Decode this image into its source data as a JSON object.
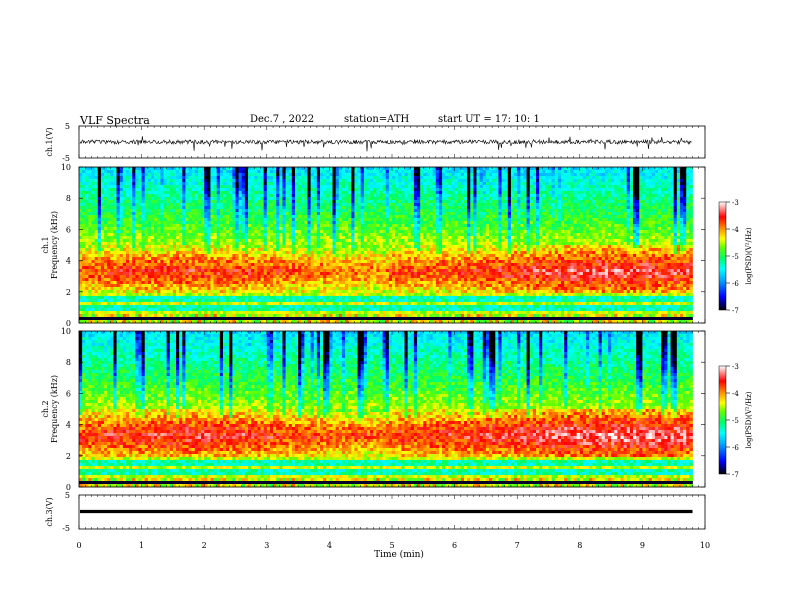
{
  "header": {
    "title": "VLF  Spectra",
    "date": "Dec.7  , 2022",
    "station": "station=ATH",
    "start_ut": "start  UT  =   17: 10: 1"
  },
  "chart_data": [
    {
      "type": "line",
      "name": "waveform-ch1",
      "ylabel": "ch.1(V)",
      "ylim": [
        -5,
        5
      ],
      "yticks": [
        "5",
        "-5"
      ],
      "xlim": [
        0,
        10
      ],
      "baseline": 0.2
    },
    {
      "type": "heatmap",
      "name": "spectrogram-ch1",
      "ylabel": "ch.1\nFrequency  (kHz)",
      "ylim": [
        0,
        10
      ],
      "yticks": [
        "0",
        "2",
        "4",
        "6",
        "8",
        "10"
      ],
      "xlim": [
        0,
        9.8
      ],
      "colorbar": {
        "label": "log(PSD)(V²/Hz)",
        "range": [
          -7,
          -3
        ],
        "ticks": [
          "-3",
          "-4",
          "-5",
          "-6",
          "-7"
        ]
      }
    },
    {
      "type": "heatmap",
      "name": "spectrogram-ch2",
      "ylabel": "ch.2\nFrequency  (kHz)",
      "ylim": [
        0,
        10
      ],
      "yticks": [
        "0",
        "2",
        "4",
        "6",
        "8",
        "10"
      ],
      "xlim": [
        0,
        9.8
      ],
      "colorbar": {
        "label": "log(PSD)(V²/Hz)",
        "range": [
          -7,
          -3
        ],
        "ticks": [
          "-3",
          "-4",
          "-5",
          "-6",
          "-7"
        ]
      }
    },
    {
      "type": "line",
      "name": "waveform-ch3",
      "ylabel": "ch.3(V)",
      "ylim": [
        -5,
        5
      ],
      "yticks": [
        "5",
        "-5"
      ],
      "xlim": [
        0,
        10
      ],
      "baseline": 0.1
    }
  ],
  "xaxis": {
    "label": "Time  (min)",
    "range": [
      0,
      10
    ],
    "ticks": [
      "0",
      "1",
      "2",
      "3",
      "4",
      "5",
      "6",
      "7",
      "8",
      "9",
      "10"
    ]
  },
  "colors": {
    "scale": [
      "#000000",
      "#0000ff",
      "#00aaff",
      "#00ffff",
      "#00ff66",
      "#66ff00",
      "#ffff00",
      "#ff8800",
      "#ff0000",
      "#ffffff"
    ]
  }
}
